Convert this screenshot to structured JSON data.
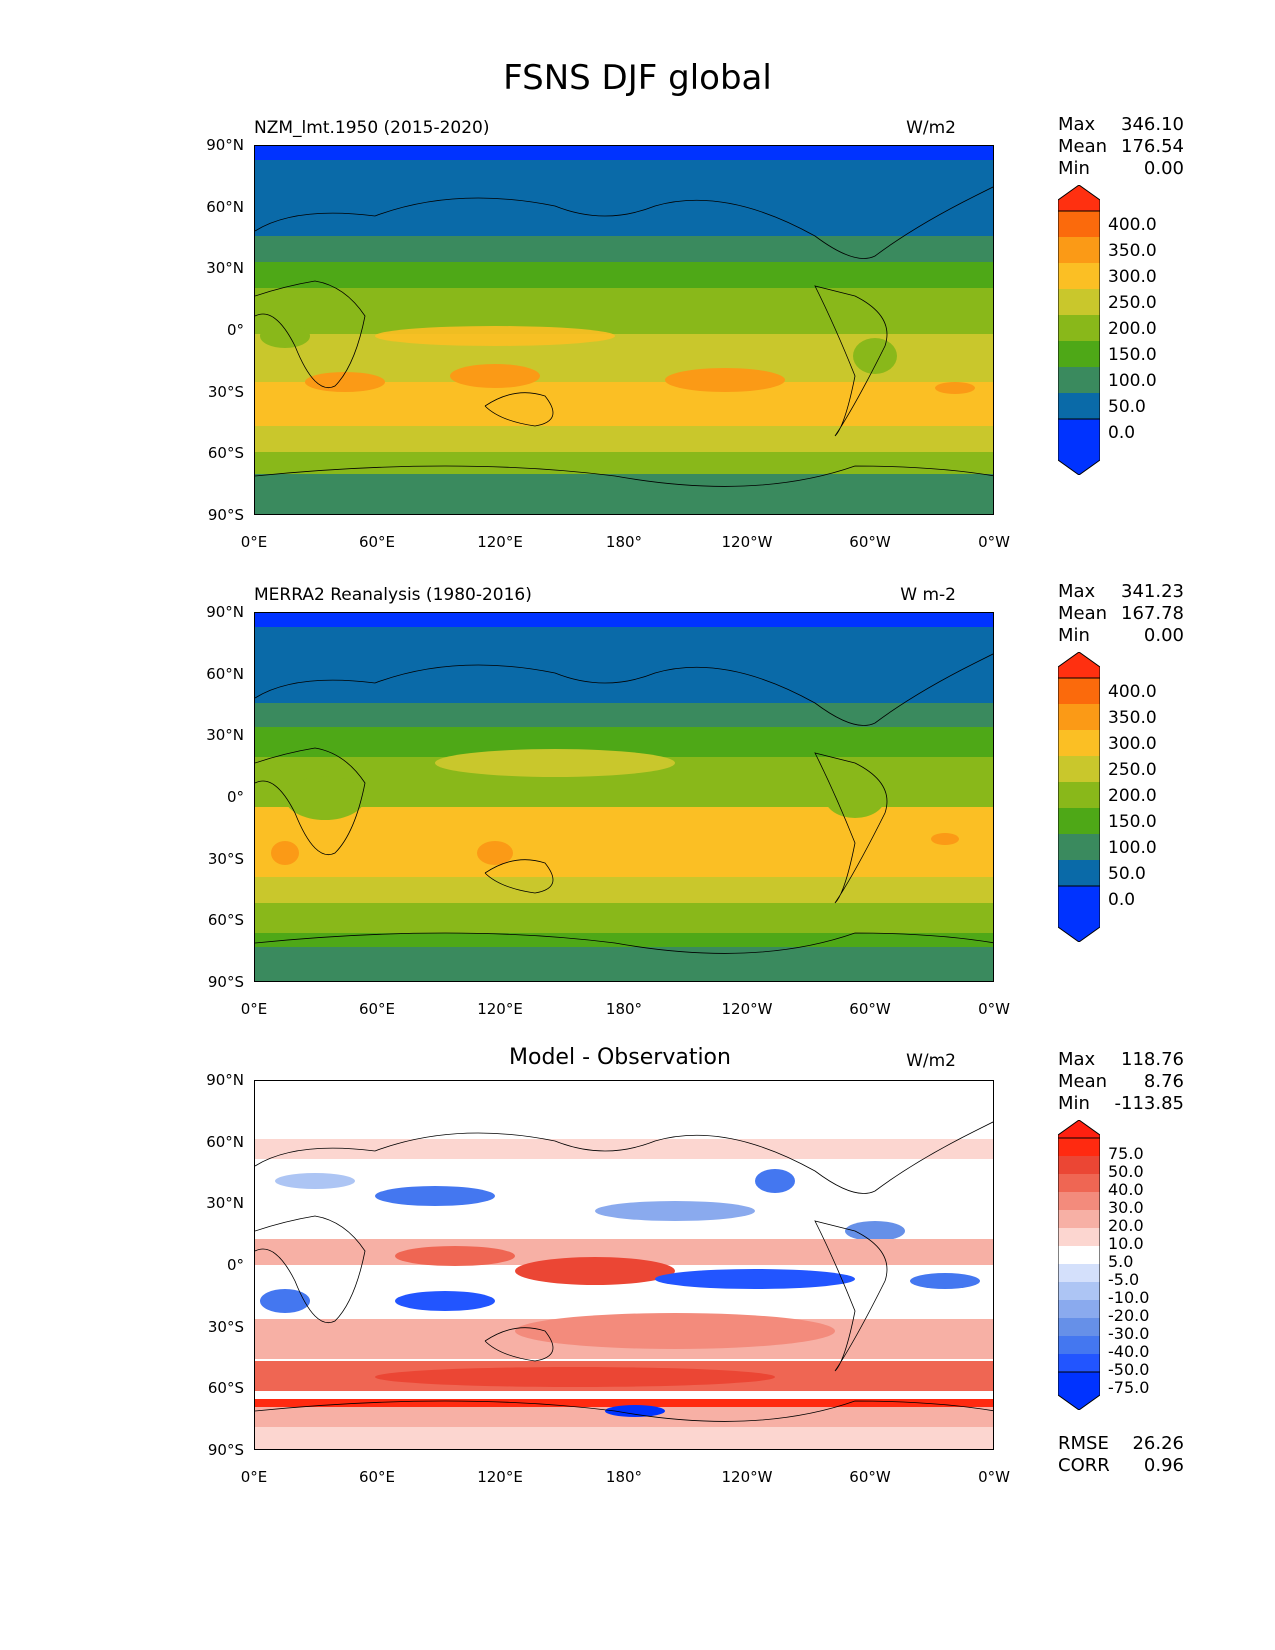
{
  "figure_title": "FSNS DJF global",
  "x_ticks": [
    "0°E",
    "60°E",
    "120°E",
    "180°",
    "120°W",
    "60°W",
    "0°W"
  ],
  "y_ticks": [
    "90°N",
    "60°N",
    "30°N",
    "0°",
    "30°S",
    "60°S",
    "90°S"
  ],
  "panels": [
    {
      "title": "NZM_lmt.1950 (2015-2020)",
      "units": "W/m2",
      "stats": {
        "max_label": "Max",
        "max": "346.10",
        "mean_label": "Mean",
        "mean": "176.54",
        "min_label": "Min",
        "min": "0.00"
      },
      "colorbar_labels": [
        "400.0",
        "350.0",
        "300.0",
        "250.0",
        "200.0",
        "150.0",
        "100.0",
        "50.0",
        "0.0"
      ]
    },
    {
      "title": "MERRA2 Reanalysis (1980-2016)",
      "units": "W m-2",
      "stats": {
        "max_label": "Max",
        "max": "341.23",
        "mean_label": "Mean",
        "mean": "167.78",
        "min_label": "Min",
        "min": "0.00"
      },
      "colorbar_labels": [
        "400.0",
        "350.0",
        "300.0",
        "250.0",
        "200.0",
        "150.0",
        "100.0",
        "50.0",
        "0.0"
      ]
    },
    {
      "title": "Model - Observation",
      "units": "W/m2",
      "stats": {
        "max_label": "Max",
        "max": "118.76",
        "mean_label": "Mean",
        "mean": "8.76",
        "min_label": "Min",
        "min": "-113.85"
      },
      "colorbar_labels": [
        "75.0",
        "50.0",
        "40.0",
        "30.0",
        "20.0",
        "10.0",
        "5.0",
        "-5.0",
        "-10.0",
        "-20.0",
        "-30.0",
        "-40.0",
        "-50.0",
        "-75.0"
      ],
      "rmse_label": "RMSE",
      "rmse": "26.26",
      "corr_label": "CORR",
      "corr": "0.96"
    }
  ],
  "colors": {
    "seq": [
      "#0033ff",
      "#0a6aa8",
      "#3a8a5e",
      "#4ea817",
      "#89b81a",
      "#c9c72c",
      "#fbbf24",
      "#fb9a16",
      "#fb6a0c",
      "#ff3010"
    ],
    "diff": [
      "#0033ff",
      "#2255ff",
      "#4477f0",
      "#6690e8",
      "#8aaaee",
      "#adc5f4",
      "#d4e0fb",
      "#ffffff",
      "#fcd6d0",
      "#f7b0a5",
      "#f38b7c",
      "#ef6653",
      "#eb4634",
      "#ff2a10",
      "#ff2010"
    ]
  }
}
